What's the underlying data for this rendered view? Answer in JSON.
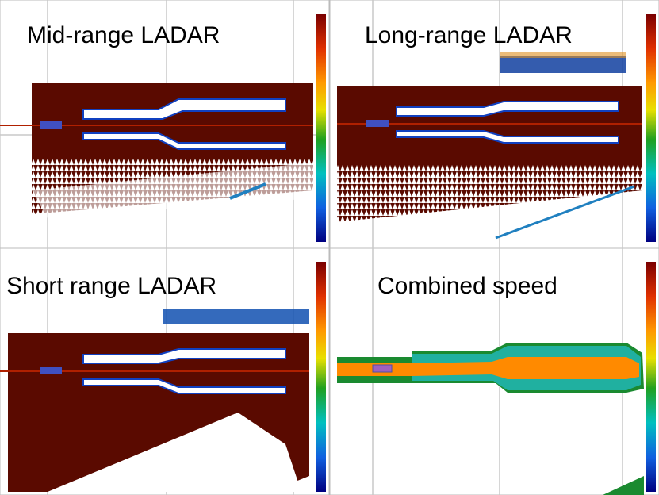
{
  "panels": [
    {
      "label": "Mid-range LADAR"
    },
    {
      "label": "Long-range LADAR"
    },
    {
      "label": "Short range LADAR"
    },
    {
      "label": "Combined speed"
    }
  ]
}
